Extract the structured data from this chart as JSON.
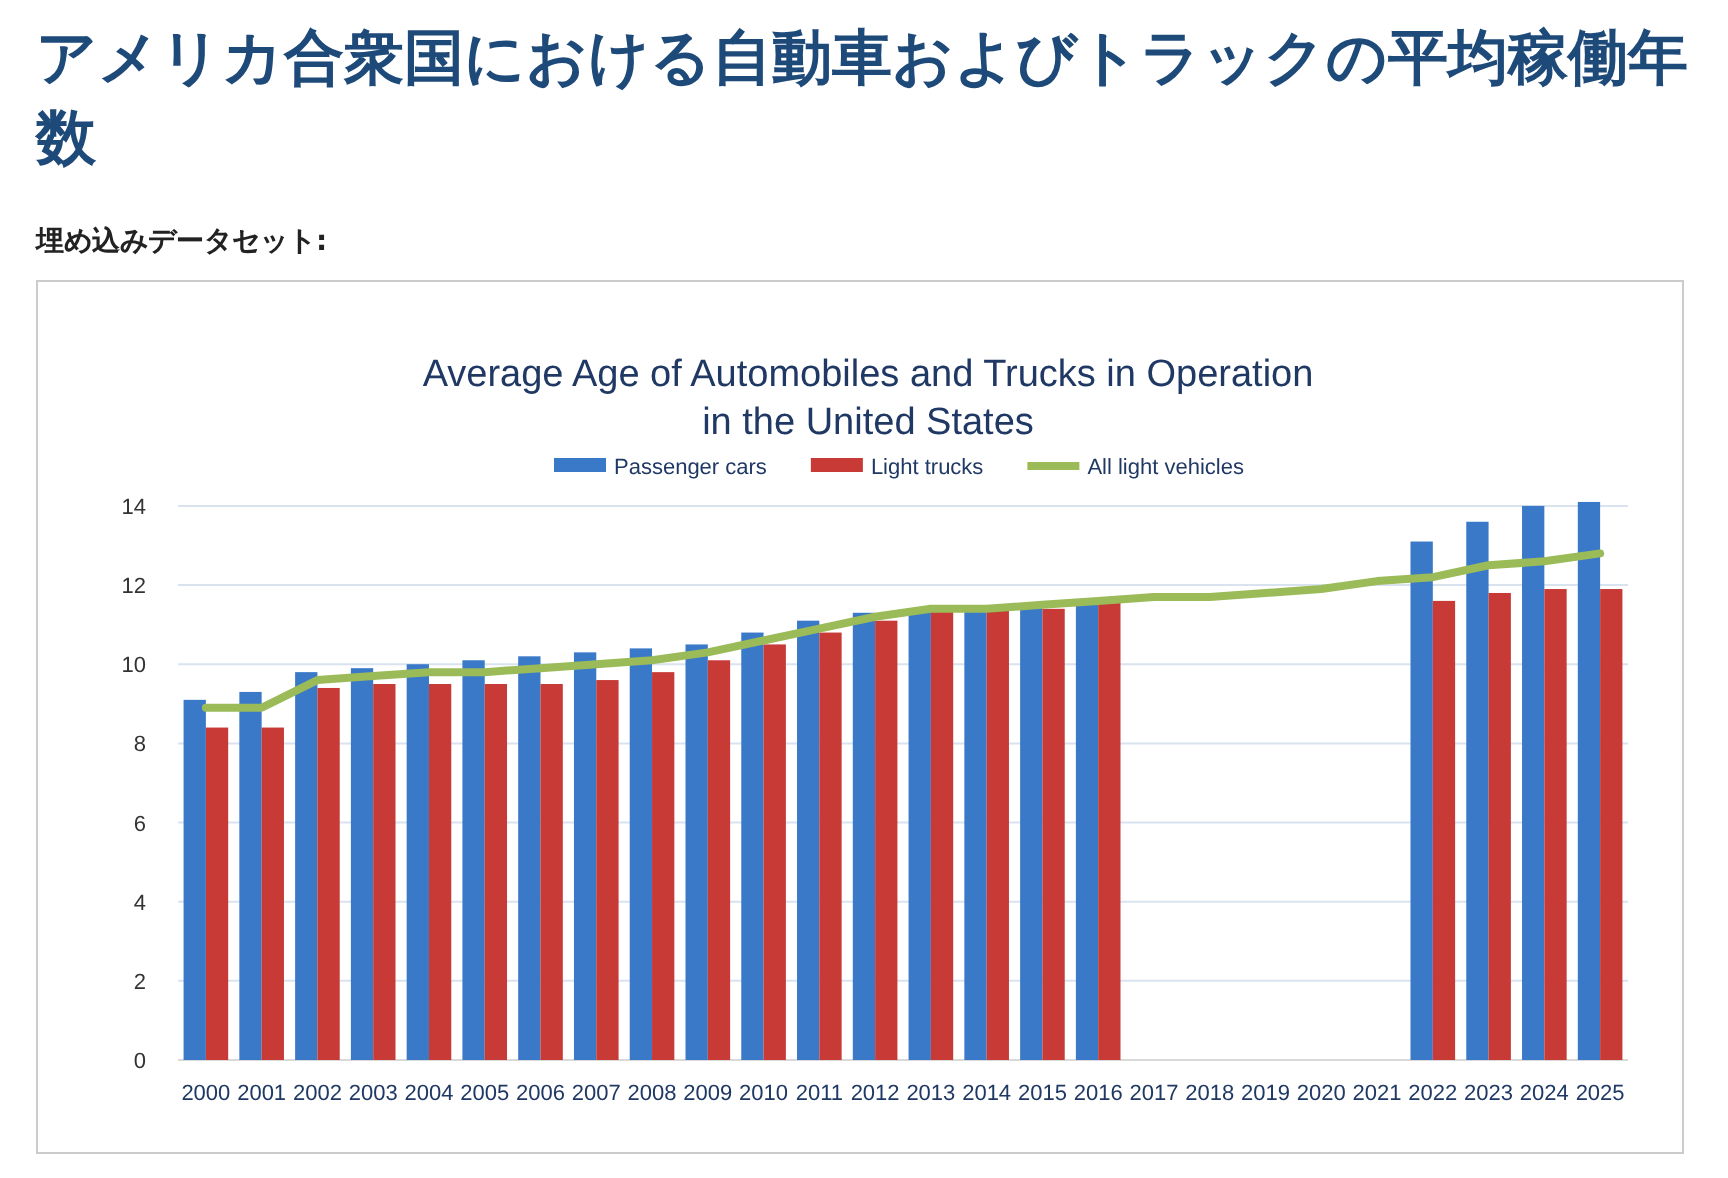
{
  "chart_data": {
    "type": "bar",
    "title": "アメリカ合衆国における自動車およびトラックの平均稼働年数",
    "subtitle": "Average Age of Automobiles and Trucks in Operation in the United States",
    "annotations": [
      "埋め込みデータセット:"
    ],
    "categories": [
      "2000",
      "2001",
      "2002",
      "2003",
      "2004",
      "2005",
      "2006",
      "2007",
      "2008",
      "2009",
      "2010",
      "2011",
      "2012",
      "2013",
      "2014",
      "2015",
      "2016",
      "2017",
      "2018",
      "2019",
      "2020",
      "2021",
      "2022",
      "2023",
      "2024",
      "2025"
    ],
    "series": [
      {
        "name": "Passenger cars",
        "color": "#3a78c8",
        "values": [
          9.1,
          9.3,
          9.8,
          9.9,
          10.0,
          10.1,
          10.2,
          10.3,
          10.4,
          10.5,
          10.8,
          11.1,
          11.3,
          11.4,
          11.4,
          11.5,
          11.6,
          null,
          null,
          null,
          null,
          null,
          13.1,
          13.6,
          14.0,
          14.1
        ]
      },
      {
        "name": "Light trucks",
        "color": "#c83a36",
        "values": [
          8.4,
          8.4,
          9.4,
          9.5,
          9.5,
          9.5,
          9.5,
          9.6,
          9.8,
          10.1,
          10.5,
          10.8,
          11.1,
          11.4,
          11.4,
          11.4,
          11.6,
          null,
          null,
          null,
          null,
          null,
          11.6,
          11.8,
          11.9,
          11.9
        ]
      },
      {
        "name": "All light vehicles",
        "type": "line",
        "color": "#9bbb59",
        "values": [
          8.9,
          8.9,
          9.6,
          9.7,
          9.8,
          9.8,
          9.9,
          10.0,
          10.1,
          10.3,
          10.6,
          10.9,
          11.2,
          11.4,
          11.4,
          11.5,
          11.6,
          11.7,
          11.7,
          11.8,
          11.9,
          12.1,
          12.2,
          12.5,
          12.6,
          12.8
        ]
      }
    ],
    "ylim": [
      0,
      14.2
    ],
    "yticks": [
      0,
      2,
      4,
      6,
      8,
      10,
      12,
      14
    ],
    "grid": "y",
    "legend": "top"
  }
}
